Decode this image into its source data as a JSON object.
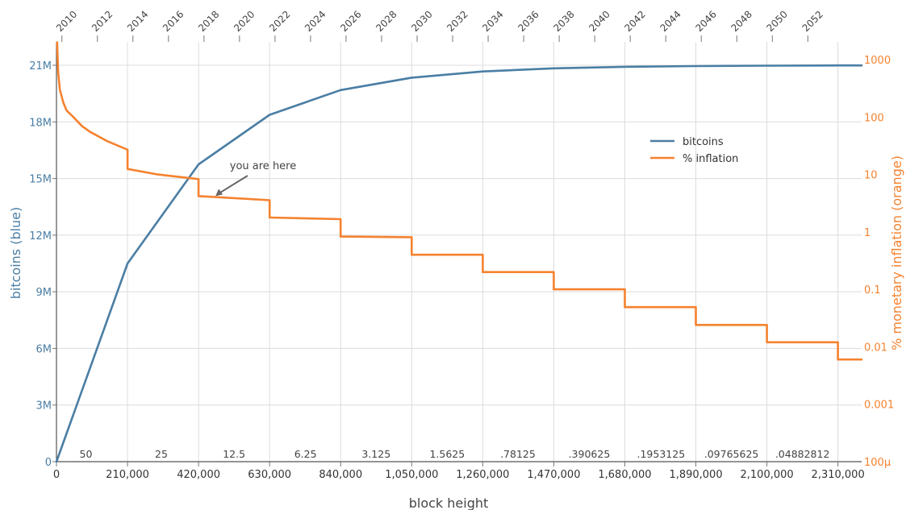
{
  "chart_data": {
    "type": "line",
    "xlabel": "block height",
    "ylabel_left": "bitcoins (blue)",
    "ylabel_right": "% monetary inflation (orange)",
    "xlim": [
      0,
      2380000
    ],
    "ylim_left": [
      0,
      22000000
    ],
    "ylim_right": [
      0.0001,
      3000
    ],
    "yscale_right": "log",
    "x_ticks": [
      {
        "value": 0,
        "label": "0"
      },
      {
        "value": 210000,
        "label": "210,000"
      },
      {
        "value": 420000,
        "label": "420,000"
      },
      {
        "value": 630000,
        "label": "630,000"
      },
      {
        "value": 840000,
        "label": "840,000"
      },
      {
        "value": 1050000,
        "label": "1,050,000"
      },
      {
        "value": 1260000,
        "label": "1,260,000"
      },
      {
        "value": 1470000,
        "label": "1,470,000"
      },
      {
        "value": 1680000,
        "label": "1,680,000"
      },
      {
        "value": 1890000,
        "label": "1,890,000"
      },
      {
        "value": 2100000,
        "label": "2,100,000"
      },
      {
        "value": 2310000,
        "label": "2,310,000"
      }
    ],
    "y_left_ticks": [
      {
        "value": 0,
        "label": "0"
      },
      {
        "value": 3000000,
        "label": "3M"
      },
      {
        "value": 6000000,
        "label": "6M"
      },
      {
        "value": 9000000,
        "label": "9M"
      },
      {
        "value": 12000000,
        "label": "12M"
      },
      {
        "value": 15000000,
        "label": "15M"
      },
      {
        "value": 18000000,
        "label": "18M"
      },
      {
        "value": 21000000,
        "label": "21M"
      }
    ],
    "y_right_ticks": [
      {
        "value": 0.0001,
        "label": "100µ"
      },
      {
        "value": 0.001,
        "label": "0.001"
      },
      {
        "value": 0.01,
        "label": "0.01"
      },
      {
        "value": 0.1,
        "label": "0.1"
      },
      {
        "value": 1,
        "label": "1"
      },
      {
        "value": 10,
        "label": "10"
      },
      {
        "value": 100,
        "label": "100"
      },
      {
        "value": 1000,
        "label": "1000"
      }
    ],
    "top_ticks": [
      {
        "x": 16000,
        "label": "2010"
      },
      {
        "x": 121000,
        "label": "2012"
      },
      {
        "x": 226000,
        "label": "2014"
      },
      {
        "x": 331000,
        "label": "2016"
      },
      {
        "x": 436000,
        "label": "2018"
      },
      {
        "x": 541000,
        "label": "2020"
      },
      {
        "x": 646000,
        "label": "2022"
      },
      {
        "x": 751000,
        "label": "2024"
      },
      {
        "x": 856000,
        "label": "2026"
      },
      {
        "x": 961000,
        "label": "2028"
      },
      {
        "x": 1066000,
        "label": "2030"
      },
      {
        "x": 1171000,
        "label": "2032"
      },
      {
        "x": 1276000,
        "label": "2034"
      },
      {
        "x": 1381000,
        "label": "2036"
      },
      {
        "x": 1486000,
        "label": "2038"
      },
      {
        "x": 1591000,
        "label": "2040"
      },
      {
        "x": 1696000,
        "label": "2042"
      },
      {
        "x": 1801000,
        "label": "2044"
      },
      {
        "x": 1906000,
        "label": "2046"
      },
      {
        "x": 2011000,
        "label": "2048"
      },
      {
        "x": 2116000,
        "label": "2050"
      },
      {
        "x": 2221000,
        "label": "2052"
      }
    ],
    "block_rewards": [
      {
        "x": 87000,
        "label": "50"
      },
      {
        "x": 310000,
        "label": "25"
      },
      {
        "x": 525000,
        "label": "12.5"
      },
      {
        "x": 736000,
        "label": "6.25"
      },
      {
        "x": 945000,
        "label": "3.125"
      },
      {
        "x": 1155000,
        "label": "1.5625"
      },
      {
        "x": 1364000,
        "label": ".78125"
      },
      {
        "x": 1575000,
        "label": ".390625"
      },
      {
        "x": 1787000,
        "label": ".1953125"
      },
      {
        "x": 1995000,
        "label": ".09765625"
      },
      {
        "x": 2205000,
        "label": ".04882812"
      }
    ],
    "series": [
      {
        "name": "bitcoins",
        "color": "#4a7ea4",
        "axis": "left",
        "x": [
          0,
          210000,
          420000,
          630000,
          840000,
          1050000,
          1260000,
          1470000,
          1680000,
          1890000,
          2100000,
          2310000,
          2380000
        ],
        "y": [
          0,
          10500000,
          15750000,
          18375000,
          19687500,
          20343750,
          20671875,
          20835938,
          20917969,
          20958984,
          20979492,
          20989746,
          20992000
        ]
      },
      {
        "name": "% inflation",
        "color": "#f5822f",
        "axis": "right",
        "x": [
          2000,
          5000,
          10000,
          20000,
          30000,
          50000,
          75000,
          100000,
          150000,
          209999,
          210000,
          300000,
          419999,
          420000,
          629999,
          630000,
          839999,
          840000,
          1049999,
          1050000,
          1259999,
          1260000,
          1469999,
          1470000,
          1679999,
          1680000,
          1889999,
          1890000,
          2099999,
          2100000,
          2309999,
          2310000,
          2380000
        ],
        "y": [
          2000,
          600,
          300,
          180,
          130,
          100,
          70,
          55,
          38,
          27,
          12.5,
          10,
          8.3,
          4.2,
          3.57,
          1.78,
          1.67,
          0.83,
          0.81,
          0.4,
          0.4,
          0.2,
          0.2,
          0.1,
          0.1,
          0.049,
          0.049,
          0.024,
          0.024,
          0.012,
          0.012,
          0.006,
          0.006
        ]
      }
    ],
    "legend": {
      "position": "top-right",
      "entries": [
        "bitcoins",
        "% inflation"
      ]
    },
    "annotation": {
      "text": "you are here",
      "x": 470000,
      "y_right": 4.2
    },
    "grid": true,
    "colors": {
      "bitcoins": "#4a7ea4",
      "inflation": "#f5822f",
      "grid": "#dcdcdc"
    }
  }
}
